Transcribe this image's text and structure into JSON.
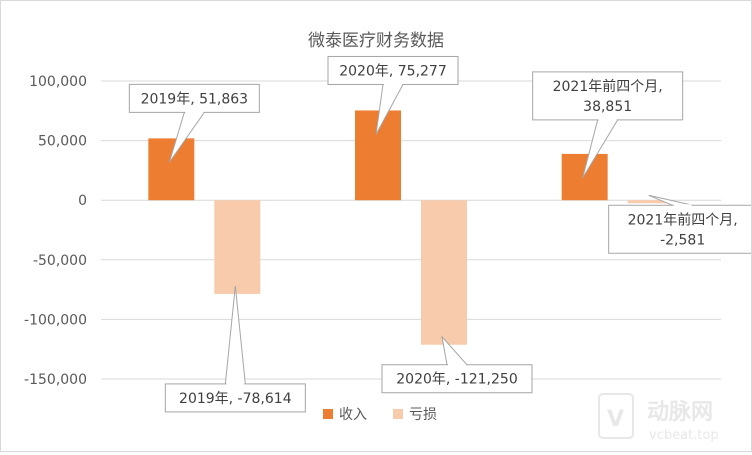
{
  "chart_data": {
    "type": "bar",
    "title": "微泰医疗财务数据",
    "categories": [
      "2019年",
      "2020年",
      "2021年前四个月"
    ],
    "series": [
      {
        "name": "收入",
        "values": [
          51863,
          75277,
          38851
        ],
        "color": "#ed7d31"
      },
      {
        "name": "亏损",
        "values": [
          -78614,
          -121250,
          -2581
        ],
        "color": "#f8cbad"
      }
    ],
    "ylim": [
      -150000,
      100000
    ],
    "yticks": [
      100000,
      50000,
      0,
      -50000,
      -100000,
      -150000
    ],
    "ytick_labels": [
      "100,000",
      "50,000",
      "0",
      "-50,000",
      "-100,000",
      "-150,000"
    ],
    "grid": true,
    "legend": "bottom",
    "data_labels": [
      "2019年, 51,863",
      "2019年, -78,614",
      "2020年, 75,277",
      "2020年, -121,250",
      "2021年前四个月, 38,851",
      "2021年前四个月, -2,581"
    ]
  },
  "watermark": {
    "brand": "动脉网",
    "site": "vcbeat.top"
  }
}
